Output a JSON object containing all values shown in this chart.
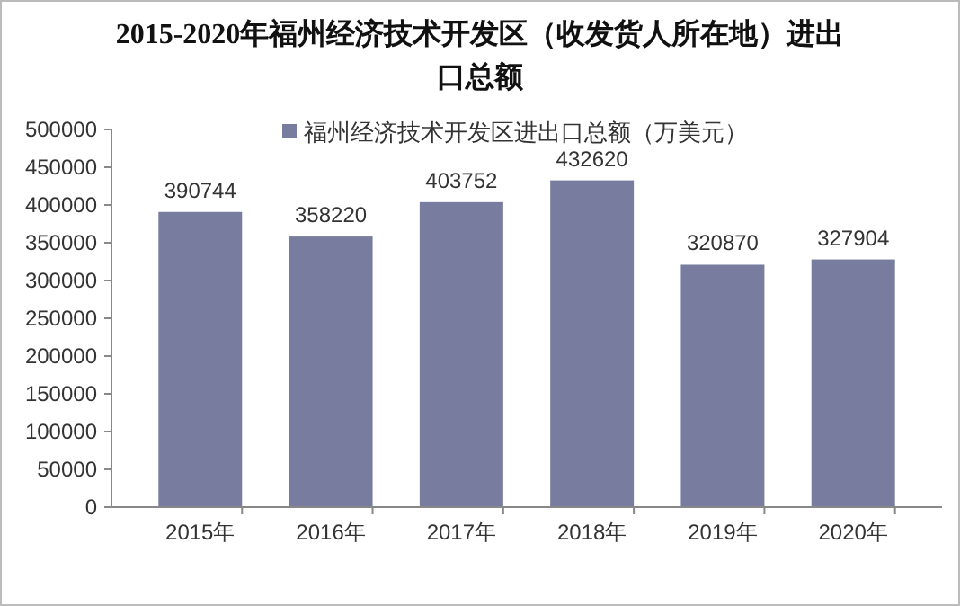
{
  "chart_data": {
    "type": "bar",
    "title": "2015-2020年福州经济技术开发区（收发货人所在地）进出口总额",
    "categories": [
      "2015年",
      "2016年",
      "2017年",
      "2018年",
      "2019年",
      "2020年"
    ],
    "series": [
      {
        "name": "福州经济技术开发区进出口总额（万美元）",
        "color": "#787d9f",
        "values": [
          390744,
          358220,
          403752,
          432620,
          320870,
          327904
        ]
      }
    ],
    "ylim": [
      0,
      500000
    ],
    "yticks": [
      0,
      50000,
      100000,
      150000,
      200000,
      250000,
      300000,
      350000,
      400000,
      450000,
      500000
    ],
    "data_labels": true,
    "legend": "top",
    "grid": false
  }
}
